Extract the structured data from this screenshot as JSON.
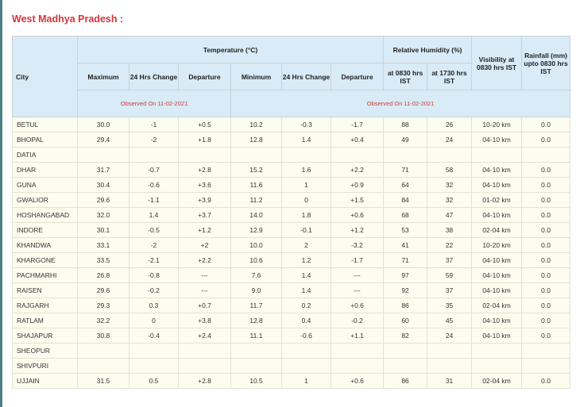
{
  "title": "West Madhya Pradesh :",
  "headers": {
    "city": "City",
    "temperature": "Temperature (°C)",
    "humidity": "Relative Humidity (%)",
    "visibility": "Visibility at 0830 hrs IST",
    "rainfall": "Rainfall (mm) upto 0830 hrs IST",
    "maximum": "Maximum",
    "change": "24 Hrs Change",
    "departure": "Departure",
    "minimum": "Minimum",
    "change2": "24 Hrs Change",
    "departure2": "Departure",
    "rh0830": "at 0830 hrs IST",
    "rh1730": "at 1730 hrs IST",
    "observed_max": "Observed On 11-02-2021",
    "observed_min": "Observed On 11-02-2021"
  },
  "rows": [
    [
      "BETUL",
      "30.0",
      "-1",
      "+0.5",
      "10.2",
      "-0.3",
      "-1.7",
      "88",
      "26",
      "10-20 km",
      "0.0"
    ],
    [
      "BHOPAL",
      "29.4",
      "-2",
      "+1.8",
      "12.8",
      "1.4",
      "+0.4",
      "49",
      "24",
      "04-10 km",
      "0.0"
    ],
    [
      "DATIA",
      "",
      "",
      "",
      "",
      "",
      "",
      "",
      "",
      "",
      ""
    ],
    [
      "DHAR",
      "31.7",
      "-0.7",
      "+2.8",
      "15.2",
      "1.6",
      "+2.2",
      "71",
      "58",
      "04-10 km",
      "0.0"
    ],
    [
      "GUNA",
      "30.4",
      "-0.6",
      "+3.6",
      "11.6",
      "1",
      "+0.9",
      "64",
      "32",
      "04-10 km",
      "0.0"
    ],
    [
      "GWALIOR",
      "29.6",
      "-1.1",
      "+3.9",
      "11.2",
      "0",
      "+1.5",
      "84",
      "32",
      "01-02 km",
      "0.0"
    ],
    [
      "HOSHANGABAD",
      "32.0",
      "1.4",
      "+3.7",
      "14.0",
      "1.8",
      "+0.6",
      "68",
      "47",
      "04-10 km",
      "0.0"
    ],
    [
      "INDORE",
      "30.1",
      "-0.5",
      "+1.2",
      "12.9",
      "-0.1",
      "+1.2",
      "53",
      "38",
      "02-04 km",
      "0.0"
    ],
    [
      "KHANDWA",
      "33.1",
      "-2",
      "+2",
      "10.0",
      "2",
      "-3.2",
      "41",
      "22",
      "10-20 km",
      "0.0"
    ],
    [
      "KHARGONE",
      "33.5",
      "-2.1",
      "+2.2",
      "10.6",
      "1.2",
      "-1.7",
      "71",
      "37",
      "04-10 km",
      "0.0"
    ],
    [
      "PACHMARHI",
      "26.8",
      "-0.8",
      "---",
      "7.6",
      "1.4",
      "---",
      "97",
      "59",
      "04-10 km",
      "0.0"
    ],
    [
      "RAISEN",
      "29.6",
      "-0.2",
      "---",
      "9.0",
      "1.4",
      "---",
      "92",
      "37",
      "04-10 km",
      "0.0"
    ],
    [
      "RAJGARH",
      "29.3",
      "0.3",
      "+0.7",
      "11.7",
      "0.2",
      "+0.6",
      "86",
      "35",
      "02-04 km",
      "0.0"
    ],
    [
      "RATLAM",
      "32.2",
      "0",
      "+3.8",
      "12.8",
      "0.4",
      "-0.2",
      "60",
      "45",
      "04-10 km",
      "0.0"
    ],
    [
      "SHAJAPUR",
      "30.8",
      "-0.4",
      "+2.4",
      "11.1",
      "-0.6",
      "+1.1",
      "82",
      "24",
      "04-10 km",
      "0.0"
    ],
    [
      "SHEOPUR",
      "",
      "",
      "",
      "",
      "",
      "",
      "",
      "",
      "",
      ""
    ],
    [
      "SHIVPURI",
      "",
      "",
      "",
      "",
      "",
      "",
      "",
      "",
      "",
      ""
    ],
    [
      "UJJAIN",
      "31.5",
      "0.5",
      "+2.8",
      "10.5",
      "1",
      "+0.6",
      "86",
      "31",
      "02-04 km",
      "0.0"
    ]
  ]
}
